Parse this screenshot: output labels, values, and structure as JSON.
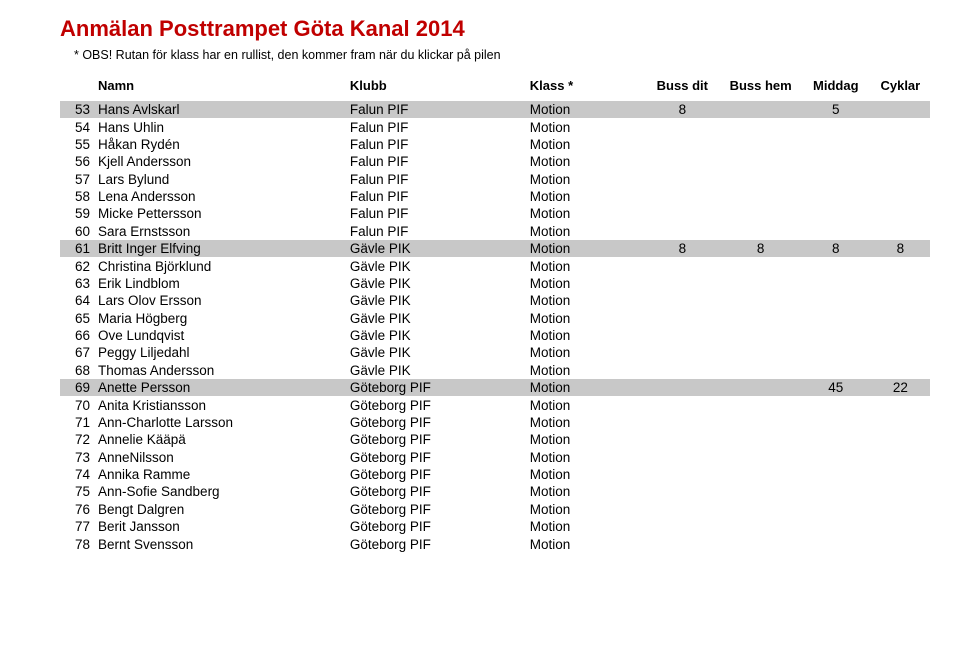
{
  "title": "Anmälan Posttrampet Göta Kanal 2014",
  "note": "* OBS! Rutan för klass har en rullist, den kommer fram när du klickar på pilen",
  "title_color": "#c00000",
  "highlight_color": "#c8c8c8",
  "background_color": "#ffffff",
  "headers": {
    "name": "Namn",
    "club": "Klubb",
    "klass": "Klass *",
    "buss_dit": "Buss dit",
    "buss_hem": "Buss hem",
    "middag": "Middag",
    "cyklar": "Cyklar"
  },
  "rows": [
    {
      "n": 53,
      "name": "Hans Avlskarl",
      "club": "Falun PIF",
      "klass": "Motion",
      "dit": "8",
      "hem": "",
      "mid": "5",
      "cyk": "",
      "hl": true
    },
    {
      "n": 54,
      "name": "Hans Uhlin",
      "club": "Falun PIF",
      "klass": "Motion",
      "dit": "",
      "hem": "",
      "mid": "",
      "cyk": "",
      "hl": false
    },
    {
      "n": 55,
      "name": "Håkan Rydén",
      "club": "Falun PIF",
      "klass": "Motion",
      "dit": "",
      "hem": "",
      "mid": "",
      "cyk": "",
      "hl": false
    },
    {
      "n": 56,
      "name": "Kjell Andersson",
      "club": "Falun PIF",
      "klass": "Motion",
      "dit": "",
      "hem": "",
      "mid": "",
      "cyk": "",
      "hl": false
    },
    {
      "n": 57,
      "name": "Lars Bylund",
      "club": "Falun PIF",
      "klass": "Motion",
      "dit": "",
      "hem": "",
      "mid": "",
      "cyk": "",
      "hl": false
    },
    {
      "n": 58,
      "name": "Lena Andersson",
      "club": "Falun PIF",
      "klass": "Motion",
      "dit": "",
      "hem": "",
      "mid": "",
      "cyk": "",
      "hl": false
    },
    {
      "n": 59,
      "name": "Micke Pettersson",
      "club": "Falun PIF",
      "klass": "Motion",
      "dit": "",
      "hem": "",
      "mid": "",
      "cyk": "",
      "hl": false
    },
    {
      "n": 60,
      "name": "Sara Ernstsson",
      "club": "Falun PIF",
      "klass": "Motion",
      "dit": "",
      "hem": "",
      "mid": "",
      "cyk": "",
      "hl": false
    },
    {
      "n": 61,
      "name": "Britt Inger Elfving",
      "club": "Gävle PIK",
      "klass": "Motion",
      "dit": "8",
      "hem": "8",
      "mid": "8",
      "cyk": "8",
      "hl": true
    },
    {
      "n": 62,
      "name": "Christina Björklund",
      "club": "Gävle PIK",
      "klass": "Motion",
      "dit": "",
      "hem": "",
      "mid": "",
      "cyk": "",
      "hl": false
    },
    {
      "n": 63,
      "name": "Erik Lindblom",
      "club": "Gävle PIK",
      "klass": "Motion",
      "dit": "",
      "hem": "",
      "mid": "",
      "cyk": "",
      "hl": false
    },
    {
      "n": 64,
      "name": "Lars Olov Ersson",
      "club": "Gävle PIK",
      "klass": "Motion",
      "dit": "",
      "hem": "",
      "mid": "",
      "cyk": "",
      "hl": false
    },
    {
      "n": 65,
      "name": "Maria Högberg",
      "club": "Gävle PIK",
      "klass": "Motion",
      "dit": "",
      "hem": "",
      "mid": "",
      "cyk": "",
      "hl": false
    },
    {
      "n": 66,
      "name": "Ove Lundqvist",
      "club": "Gävle PIK",
      "klass": "Motion",
      "dit": "",
      "hem": "",
      "mid": "",
      "cyk": "",
      "hl": false
    },
    {
      "n": 67,
      "name": "Peggy Liljedahl",
      "club": "Gävle PIK",
      "klass": "Motion",
      "dit": "",
      "hem": "",
      "mid": "",
      "cyk": "",
      "hl": false
    },
    {
      "n": 68,
      "name": "Thomas Andersson",
      "club": "Gävle PIK",
      "klass": "Motion",
      "dit": "",
      "hem": "",
      "mid": "",
      "cyk": "",
      "hl": false
    },
    {
      "n": 69,
      "name": "Anette Persson",
      "club": "Göteborg PIF",
      "klass": "Motion",
      "dit": "",
      "hem": "",
      "mid": "45",
      "cyk": "22",
      "hl": true
    },
    {
      "n": 70,
      "name": "Anita Kristiansson",
      "club": "Göteborg PIF",
      "klass": "Motion",
      "dit": "",
      "hem": "",
      "mid": "",
      "cyk": "",
      "hl": false
    },
    {
      "n": 71,
      "name": "Ann-Charlotte Larsson",
      "club": "Göteborg PIF",
      "klass": "Motion",
      "dit": "",
      "hem": "",
      "mid": "",
      "cyk": "",
      "hl": false
    },
    {
      "n": 72,
      "name": "Annelie Kääpä",
      "club": "Göteborg PIF",
      "klass": "Motion",
      "dit": "",
      "hem": "",
      "mid": "",
      "cyk": "",
      "hl": false
    },
    {
      "n": 73,
      "name": "AnneNilsson",
      "club": "Göteborg PIF",
      "klass": "Motion",
      "dit": "",
      "hem": "",
      "mid": "",
      "cyk": "",
      "hl": false
    },
    {
      "n": 74,
      "name": "Annika Ramme",
      "club": "Göteborg PIF",
      "klass": "Motion",
      "dit": "",
      "hem": "",
      "mid": "",
      "cyk": "",
      "hl": false
    },
    {
      "n": 75,
      "name": "Ann-Sofie Sandberg",
      "club": "Göteborg PIF",
      "klass": "Motion",
      "dit": "",
      "hem": "",
      "mid": "",
      "cyk": "",
      "hl": false
    },
    {
      "n": 76,
      "name": "Bengt Dalgren",
      "club": "Göteborg PIF",
      "klass": "Motion",
      "dit": "",
      "hem": "",
      "mid": "",
      "cyk": "",
      "hl": false
    },
    {
      "n": 77,
      "name": "Berit Jansson",
      "club": "Göteborg PIF",
      "klass": "Motion",
      "dit": "",
      "hem": "",
      "mid": "",
      "cyk": "",
      "hl": false
    },
    {
      "n": 78,
      "name": "Bernt Svensson",
      "club": "Göteborg PIF",
      "klass": "Motion",
      "dit": "",
      "hem": "",
      "mid": "",
      "cyk": "",
      "hl": false
    }
  ]
}
